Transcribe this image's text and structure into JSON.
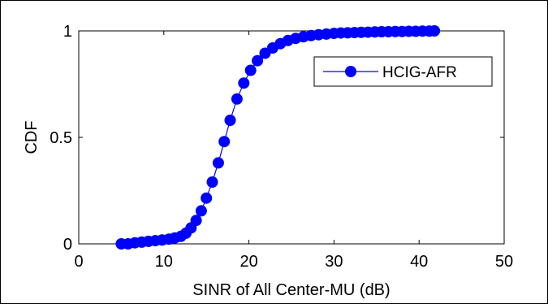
{
  "chart_data": {
    "type": "line",
    "title": "",
    "xlabel": "SINR of All Center-MU (dB)",
    "ylabel": "CDF",
    "xlim": [
      0,
      50
    ],
    "ylim": [
      0,
      1
    ],
    "xticks": [
      "0",
      "10",
      "20",
      "30",
      "40",
      "50"
    ],
    "yticks": [
      "0",
      "0.5",
      "1"
    ],
    "grid": false,
    "legend_position": "top-right",
    "series": [
      {
        "name": "HCIG-AFR",
        "color": "#0000ff",
        "marker": "circle",
        "x": [
          5.0,
          5.8,
          6.6,
          7.4,
          8.2,
          9.0,
          9.8,
          10.6,
          11.3,
          12.0,
          12.6,
          13.2,
          13.8,
          14.4,
          15.0,
          15.7,
          16.4,
          17.1,
          17.8,
          18.6,
          19.4,
          20.2,
          21.0,
          21.9,
          22.8,
          23.7,
          24.6,
          25.5,
          26.4,
          27.3,
          28.2,
          29.1,
          30.0,
          30.8,
          31.6,
          32.4,
          33.2,
          34.0,
          34.8,
          35.6,
          36.4,
          37.2,
          38.0,
          38.8,
          39.6,
          40.4,
          41.2,
          41.8
        ],
        "y": [
          0.0,
          0.0,
          0.005,
          0.008,
          0.012,
          0.015,
          0.018,
          0.022,
          0.028,
          0.035,
          0.05,
          0.075,
          0.11,
          0.155,
          0.215,
          0.29,
          0.38,
          0.48,
          0.58,
          0.68,
          0.755,
          0.815,
          0.86,
          0.895,
          0.92,
          0.94,
          0.955,
          0.965,
          0.972,
          0.978,
          0.982,
          0.985,
          0.988,
          0.99,
          0.991,
          0.992,
          0.993,
          0.994,
          0.995,
          0.996,
          0.996,
          0.997,
          0.997,
          0.998,
          0.998,
          0.999,
          0.999,
          1.0
        ]
      }
    ]
  }
}
